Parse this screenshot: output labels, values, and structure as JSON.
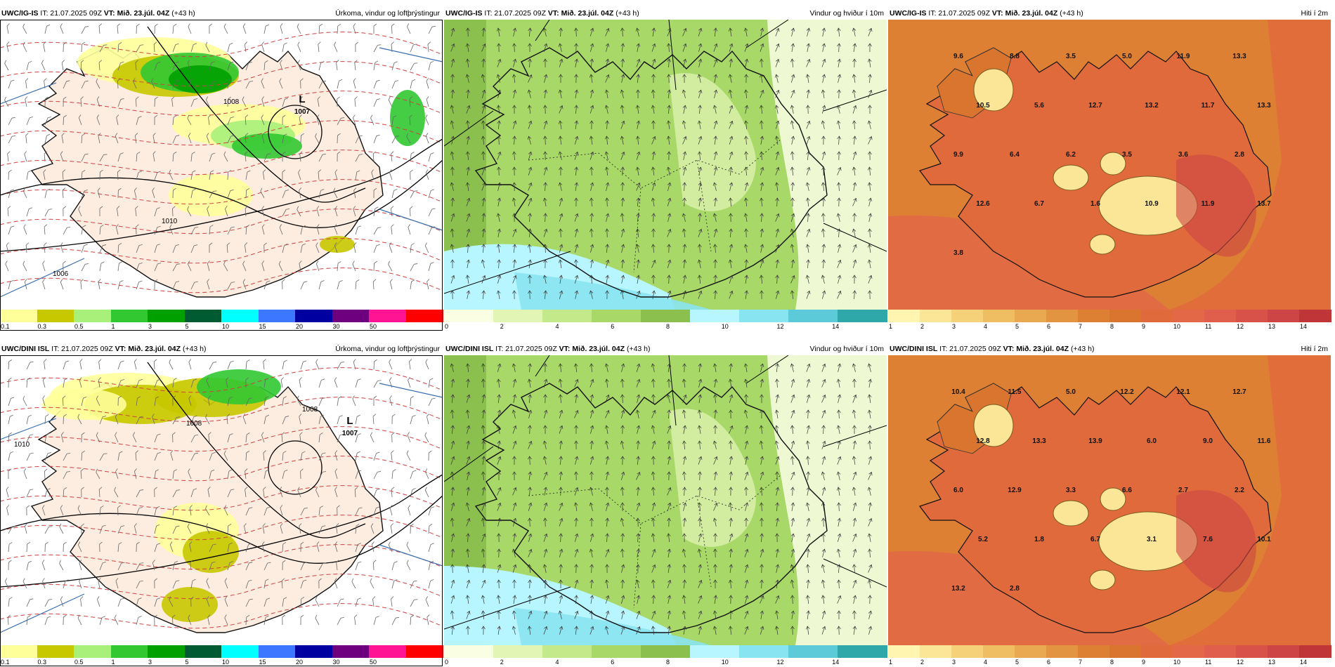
{
  "rows": [
    {
      "source": "UWC/IG-IS",
      "it": "IT: 21.07.2025 09Z",
      "vt": "VT: Mið. 23.júl. 04Z",
      "lead": "(+43 h)",
      "panels": [
        {
          "kind": "precip",
          "title": "Úrkoma, vindur og loftþrýstingur",
          "lows": [
            {
              "label": "L",
              "value": "1007"
            }
          ],
          "isobars": [
            "1008",
            "1010",
            "1006"
          ]
        },
        {
          "kind": "wind",
          "title": "Vindur og hviður í 10m"
        },
        {
          "kind": "temp",
          "title": "Hiti í 2m",
          "values": [
            "9.6",
            "8.8",
            "3.5",
            "5.0",
            "11.9",
            "13.3",
            "10.5",
            "5.6",
            "12.7",
            "13.2",
            "11.7",
            "13.3",
            "9.9",
            "6.4",
            "6.2",
            "3.5",
            "3.6",
            "2.8",
            "12.6",
            "6.7",
            "1.6",
            "10.9",
            "11.9",
            "13.7",
            "3.8"
          ]
        }
      ]
    },
    {
      "source": "UWC/DINI ISL",
      "it": "IT: 21.07.2025 09Z",
      "vt": "VT: Mið. 23.júl. 04Z",
      "lead": "(+43 h)",
      "panels": [
        {
          "kind": "precip",
          "title": "Úrkoma, vindur og loftþrýstingur",
          "lows": [
            {
              "label": "L",
              "value": "1007"
            }
          ],
          "isobars": [
            "1008",
            "1008",
            "1010"
          ]
        },
        {
          "kind": "wind",
          "title": "Vindur og hviður í 10m"
        },
        {
          "kind": "temp",
          "title": "Hiti í 2m",
          "values": [
            "10.4",
            "11.5",
            "5.0",
            "12.2",
            "12.1",
            "12.7",
            "12.8",
            "13.3",
            "13.9",
            "6.0",
            "9.0",
            "11.6",
            "6.0",
            "12.9",
            "3.3",
            "6.6",
            "2.7",
            "2.2",
            "5.2",
            "1.8",
            "6.7",
            "3.1",
            "7.6",
            "10.1",
            "13.2",
            "2.8"
          ]
        }
      ]
    }
  ],
  "legends": {
    "precip": {
      "ticks": [
        "0.1",
        "0.3",
        "0.5",
        "1",
        "3",
        "5",
        "10",
        "15",
        "20",
        "30",
        "50"
      ],
      "colors": [
        "#ffff9a",
        "#c8c800",
        "#a8f07a",
        "#32c832",
        "#00a000",
        "#005a32",
        "#00ffff",
        "#3c78ff",
        "#0000a0",
        "#6e0080",
        "#ff1493",
        "#ff0000"
      ]
    },
    "wind": {
      "ticks": [
        "0",
        "2",
        "4",
        "6",
        "8",
        "10",
        "12",
        "14"
      ],
      "colors": [
        "#fafee2",
        "#e2f5b4",
        "#c4e98a",
        "#a8d868",
        "#8cc04e",
        "#b8f6ff",
        "#88e4f0",
        "#5ccad8",
        "#2ea8a8"
      ]
    },
    "temp": {
      "ticks": [
        "1",
        "2",
        "3",
        "4",
        "5",
        "6",
        "7",
        "8",
        "9",
        "10",
        "11",
        "12",
        "13",
        "14"
      ],
      "colors": [
        "#fff4b0",
        "#fbe596",
        "#f5d27a",
        "#efbd62",
        "#e9a950",
        "#e39440",
        "#dd8034",
        "#d9752e",
        "#e06a3c",
        "#e26848",
        "#e05e4c",
        "#d8524a",
        "#cd4544",
        "#c03638"
      ]
    }
  }
}
